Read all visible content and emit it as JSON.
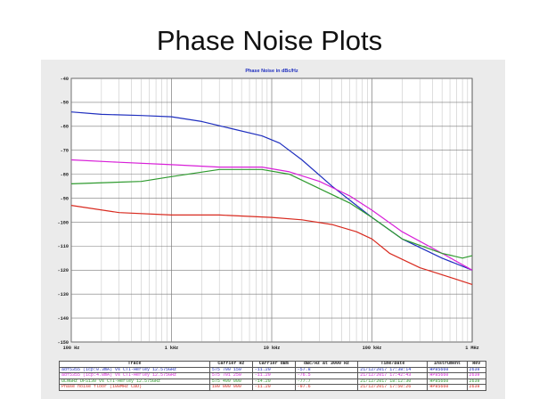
{
  "slide": {
    "title": "Phase Noise Plots"
  },
  "chart_data": {
    "type": "line",
    "title": "Phase Noise in dBc/Hz",
    "xscale": "log",
    "xlim": [
      100,
      1000000
    ],
    "ylim": [
      -150,
      -40
    ],
    "grid": true,
    "x_tick_labels": [
      {
        "x": 100,
        "label": "100 Hz"
      },
      {
        "x": 1000,
        "label": "1 kHz"
      },
      {
        "x": 10000,
        "label": "10 kHz"
      },
      {
        "x": 100000,
        "label": "100 kHz"
      },
      {
        "x": 1000000,
        "label": "1 MHz"
      }
    ],
    "y_ticks": [
      -40,
      -50,
      -60,
      -70,
      -80,
      -90,
      -100,
      -110,
      -120,
      -130,
      -140,
      -150
    ],
    "series": [
      {
        "name": "adf5355 (icp:0.3mA) vs CTI-Herley 12.575GHz",
        "color": "#1f2fbf",
        "points": [
          [
            100,
            -54
          ],
          [
            200,
            -55
          ],
          [
            500,
            -55.5
          ],
          [
            1000,
            -56
          ],
          [
            2000,
            -58
          ],
          [
            4000,
            -61
          ],
          [
            8000,
            -64
          ],
          [
            12000,
            -67
          ],
          [
            20000,
            -74
          ],
          [
            40000,
            -85
          ],
          [
            70000,
            -93
          ],
          [
            100000,
            -98
          ],
          [
            200000,
            -107
          ],
          [
            500000,
            -115
          ],
          [
            1000000,
            -120
          ]
        ]
      },
      {
        "name": "adf5355 (icp:4.8mA) vs CTI-Herley 12.575GHz",
        "color": "#d81fd8",
        "points": [
          [
            100,
            -74
          ],
          [
            300,
            -75
          ],
          [
            1000,
            -76
          ],
          [
            3000,
            -77
          ],
          [
            8000,
            -77
          ],
          [
            15000,
            -79
          ],
          [
            30000,
            -83
          ],
          [
            60000,
            -89
          ],
          [
            100000,
            -95
          ],
          [
            200000,
            -104
          ],
          [
            500000,
            -113
          ],
          [
            1000000,
            -120
          ]
        ]
      },
      {
        "name": "ULNGHz DFS130 vs CTI-Herley 12.575GHz",
        "color": "#2e9a2e",
        "points": [
          [
            100,
            -84
          ],
          [
            500,
            -83
          ],
          [
            1000,
            -81
          ],
          [
            3000,
            -78
          ],
          [
            8000,
            -78
          ],
          [
            15000,
            -80
          ],
          [
            30000,
            -86
          ],
          [
            60000,
            -92
          ],
          [
            100000,
            -98
          ],
          [
            200000,
            -107
          ],
          [
            500000,
            -113
          ],
          [
            800000,
            -115
          ],
          [
            1000000,
            -114
          ]
        ]
      },
      {
        "name": "Phase noise floor (100MHz CaO)",
        "color": "#d82a1f",
        "points": [
          [
            100,
            -93
          ],
          [
            300,
            -96
          ],
          [
            1000,
            -97
          ],
          [
            3000,
            -97
          ],
          [
            10000,
            -98
          ],
          [
            20000,
            -99
          ],
          [
            40000,
            -101
          ],
          [
            70000,
            -104
          ],
          [
            100000,
            -107
          ],
          [
            150000,
            -113
          ],
          [
            300000,
            -119
          ],
          [
            600000,
            -123
          ],
          [
            1000000,
            -126
          ]
        ]
      }
    ],
    "legend": {
      "columns": [
        "Trace",
        "Carrier Hz",
        "Carrier dBm",
        "dBc/Hz at 3000 Hz",
        "Time/Date",
        "Instrument",
        "Rev"
      ],
      "rows": [
        {
          "color": "#1f2fbf",
          "cells": [
            "adf5355 (icp:0.3mA) vs CTI-Herley 12.575GHz",
            "575 700 150",
            "-11.20",
            "-57.8",
            "21/12/2017 17:38:14",
            "HP85660",
            "2639"
          ]
        },
        {
          "color": "#d81fd8",
          "cells": [
            "adf5355 (icp:4.8mA) vs CTI-Herley 12.575GHz",
            "575 701 250",
            "-11.20",
            "-76.5",
            "21/12/2017 17:42:43",
            "HP85660",
            "2639"
          ]
        },
        {
          "color": "#2e9a2e",
          "cells": [
            "ULNGHz DFS130 vs CTI-Herley 12.575GHz",
            "575 499 000",
            "-14.20",
            "-77.7",
            "21/12/2017 18:12:30",
            "HP85660",
            "2639"
          ]
        },
        {
          "color": "#d82a1f",
          "cells": [
            "Phase noise floor (100MHz CaO)",
            "100 000 000",
            "-11.20",
            "-97.6",
            "21/12/2017 17:50:26",
            "HP85660",
            "2639"
          ]
        }
      ]
    }
  }
}
